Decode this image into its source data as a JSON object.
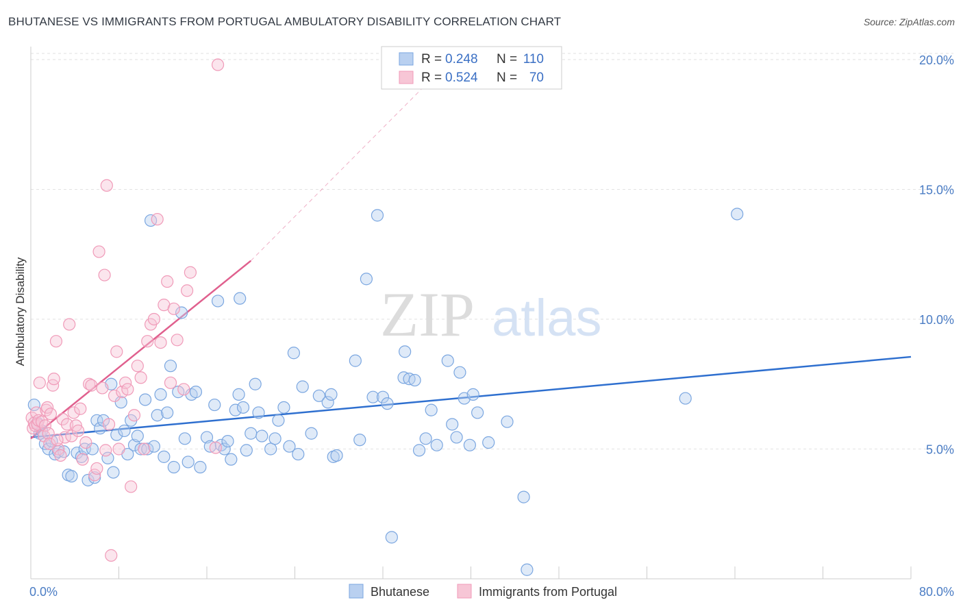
{
  "title": "BHUTANESE VS IMMIGRANTS FROM PORTUGAL AMBULATORY DISABILITY CORRELATION CHART",
  "source": "Source: ZipAtlas.com",
  "watermark": {
    "zip": "ZIP",
    "atlas": "atlas"
  },
  "chart_data": {
    "type": "scatter",
    "title": "BHUTANESE VS IMMIGRANTS FROM PORTUGAL AMBULATORY DISABILITY CORRELATION CHART",
    "xlabel": "",
    "ylabel": "Ambulatory Disability",
    "xlim": [
      0,
      80
    ],
    "ylim": [
      0,
      20.5
    ],
    "x_tick_labels": [
      "0.0%",
      "80.0%"
    ],
    "y_ticks": [
      5,
      10,
      15,
      20
    ],
    "y_tick_labels": [
      "5.0%",
      "10.0%",
      "15.0%",
      "20.0%"
    ],
    "grid": true,
    "legend_placement": "top-center",
    "stats": [
      {
        "r_label": "R =",
        "r": "0.248",
        "n_label": "N =",
        "n": "110"
      },
      {
        "r_label": "R =",
        "r": "0.524",
        "n_label": "N =",
        "n": "70"
      }
    ],
    "series": [
      {
        "name": "Bhutanese",
        "color": "#7aa6e0",
        "fill": "#b9d0f0",
        "line_color": "#2e6fcf",
        "trend": [
          [
            0,
            5.45
          ],
          [
            80,
            8.55
          ]
        ],
        "points": [
          [
            0.3,
            6.7
          ],
          [
            0.6,
            6.0
          ],
          [
            0.8,
            5.6
          ],
          [
            1.0,
            5.7
          ],
          [
            1.3,
            5.2
          ],
          [
            1.6,
            5.0
          ],
          [
            1.9,
            5.3
          ],
          [
            2.2,
            4.8
          ],
          [
            2.5,
            4.9
          ],
          [
            3.0,
            4.9
          ],
          [
            3.4,
            4.0
          ],
          [
            3.7,
            3.95
          ],
          [
            4.2,
            4.85
          ],
          [
            4.6,
            4.7
          ],
          [
            4.9,
            5.0
          ],
          [
            5.2,
            3.8
          ],
          [
            5.6,
            5.0
          ],
          [
            5.8,
            3.9
          ],
          [
            6.0,
            6.1
          ],
          [
            6.3,
            5.8
          ],
          [
            6.6,
            6.1
          ],
          [
            7.0,
            4.65
          ],
          [
            7.3,
            7.5
          ],
          [
            7.5,
            4.1
          ],
          [
            7.8,
            5.55
          ],
          [
            8.2,
            6.8
          ],
          [
            8.5,
            5.7
          ],
          [
            8.8,
            4.8
          ],
          [
            9.1,
            6.1
          ],
          [
            9.4,
            5.15
          ],
          [
            9.7,
            5.5
          ],
          [
            10.0,
            5.0
          ],
          [
            10.4,
            6.9
          ],
          [
            10.6,
            5.0
          ],
          [
            10.9,
            13.8
          ],
          [
            11.2,
            5.1
          ],
          [
            11.5,
            6.3
          ],
          [
            11.8,
            7.1
          ],
          [
            12.1,
            4.7
          ],
          [
            12.4,
            6.4
          ],
          [
            12.7,
            8.2
          ],
          [
            13.0,
            4.3
          ],
          [
            13.4,
            7.2
          ],
          [
            13.7,
            10.25
          ],
          [
            14.0,
            5.4
          ],
          [
            14.3,
            4.5
          ],
          [
            14.6,
            7.1
          ],
          [
            15.0,
            7.2
          ],
          [
            15.4,
            4.3
          ],
          [
            16.0,
            5.45
          ],
          [
            16.3,
            5.1
          ],
          [
            16.7,
            6.7
          ],
          [
            17.0,
            10.7
          ],
          [
            17.3,
            5.15
          ],
          [
            17.6,
            5.0
          ],
          [
            17.9,
            5.3
          ],
          [
            18.2,
            4.6
          ],
          [
            18.6,
            6.5
          ],
          [
            18.9,
            7.1
          ],
          [
            19.0,
            10.8
          ],
          [
            19.3,
            6.6
          ],
          [
            19.6,
            4.95
          ],
          [
            20.0,
            5.6
          ],
          [
            20.4,
            7.5
          ],
          [
            20.7,
            6.4
          ],
          [
            21.0,
            5.5
          ],
          [
            21.8,
            5.0
          ],
          [
            22.2,
            5.4
          ],
          [
            22.5,
            6.1
          ],
          [
            23.0,
            6.6
          ],
          [
            23.5,
            5.1
          ],
          [
            23.9,
            8.7
          ],
          [
            24.3,
            4.8
          ],
          [
            24.7,
            7.4
          ],
          [
            25.5,
            5.6
          ],
          [
            26.2,
            7.05
          ],
          [
            27.0,
            6.8
          ],
          [
            27.3,
            7.1
          ],
          [
            27.5,
            4.7
          ],
          [
            27.8,
            4.75
          ],
          [
            29.5,
            8.4
          ],
          [
            29.9,
            5.35
          ],
          [
            30.5,
            11.55
          ],
          [
            31.1,
            7.0
          ],
          [
            31.5,
            14.0
          ],
          [
            32.0,
            7.0
          ],
          [
            32.4,
            6.75
          ],
          [
            32.8,
            1.6
          ],
          [
            33.9,
            7.75
          ],
          [
            34.0,
            8.75
          ],
          [
            34.4,
            7.7
          ],
          [
            34.9,
            7.65
          ],
          [
            35.3,
            4.95
          ],
          [
            35.9,
            5.4
          ],
          [
            36.4,
            6.5
          ],
          [
            36.9,
            5.15
          ],
          [
            37.9,
            8.4
          ],
          [
            38.3,
            5.95
          ],
          [
            38.7,
            5.45
          ],
          [
            39.0,
            7.95
          ],
          [
            39.4,
            6.95
          ],
          [
            39.9,
            5.15
          ],
          [
            40.2,
            7.1
          ],
          [
            40.6,
            6.4
          ],
          [
            41.6,
            5.25
          ],
          [
            43.3,
            6.05
          ],
          [
            44.8,
            3.15
          ],
          [
            45.1,
            0.35
          ],
          [
            59.5,
            6.95
          ],
          [
            64.2,
            14.05
          ]
        ]
      },
      {
        "name": "Immigrants from Portugal",
        "color": "#f09ab8",
        "fill": "#f7c6d6",
        "line_color": "#e0608e",
        "trend": [
          [
            0,
            5.4
          ],
          [
            20,
            12.25
          ]
        ],
        "trend_dashed": [
          [
            20,
            12.25
          ],
          [
            37,
            19.5
          ]
        ],
        "points": [
          [
            0.1,
            6.2
          ],
          [
            0.2,
            5.8
          ],
          [
            0.3,
            6.0
          ],
          [
            0.4,
            5.9
          ],
          [
            0.5,
            6.4
          ],
          [
            0.6,
            5.95
          ],
          [
            0.7,
            6.1
          ],
          [
            0.8,
            7.55
          ],
          [
            1.0,
            6.05
          ],
          [
            1.2,
            5.5
          ],
          [
            1.3,
            5.9
          ],
          [
            1.4,
            6.5
          ],
          [
            1.5,
            6.6
          ],
          [
            1.6,
            5.6
          ],
          [
            1.8,
            6.35
          ],
          [
            2.0,
            7.45
          ],
          [
            2.1,
            7.7
          ],
          [
            2.3,
            9.15
          ],
          [
            2.5,
            5.0
          ],
          [
            2.7,
            4.75
          ],
          [
            2.9,
            6.15
          ],
          [
            3.1,
            5.45
          ],
          [
            3.3,
            5.95
          ],
          [
            3.5,
            9.8
          ],
          [
            3.7,
            5.5
          ],
          [
            3.9,
            6.4
          ],
          [
            4.1,
            5.9
          ],
          [
            4.3,
            5.7
          ],
          [
            4.5,
            6.55
          ],
          [
            4.7,
            4.6
          ],
          [
            5.0,
            5.25
          ],
          [
            5.3,
            7.5
          ],
          [
            5.5,
            7.45
          ],
          [
            5.8,
            4.0
          ],
          [
            6.0,
            4.25
          ],
          [
            6.2,
            12.6
          ],
          [
            6.5,
            7.35
          ],
          [
            6.7,
            11.7
          ],
          [
            6.9,
            15.15
          ],
          [
            7.1,
            5.95
          ],
          [
            7.3,
            0.9
          ],
          [
            7.6,
            7.05
          ],
          [
            7.8,
            8.75
          ],
          [
            8.0,
            5.0
          ],
          [
            8.3,
            7.2
          ],
          [
            8.6,
            7.55
          ],
          [
            8.8,
            7.3
          ],
          [
            9.1,
            3.55
          ],
          [
            9.4,
            6.3
          ],
          [
            9.7,
            8.2
          ],
          [
            10.0,
            7.75
          ],
          [
            10.3,
            5.0
          ],
          [
            10.6,
            9.15
          ],
          [
            10.9,
            9.8
          ],
          [
            11.2,
            10.0
          ],
          [
            11.5,
            13.85
          ],
          [
            11.8,
            9.1
          ],
          [
            12.1,
            10.55
          ],
          [
            12.4,
            11.45
          ],
          [
            12.7,
            7.55
          ],
          [
            13.0,
            10.4
          ],
          [
            13.3,
            9.2
          ],
          [
            13.9,
            7.3
          ],
          [
            14.2,
            11.1
          ],
          [
            14.5,
            11.8
          ],
          [
            17.0,
            19.8
          ],
          [
            16.8,
            5.05
          ],
          [
            6.8,
            4.95
          ],
          [
            1.7,
            5.2
          ],
          [
            2.4,
            5.35
          ]
        ]
      }
    ]
  }
}
